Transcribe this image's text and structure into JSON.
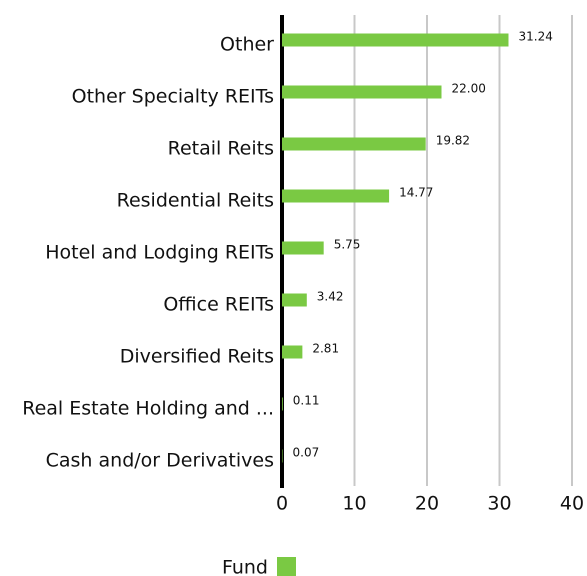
{
  "chart_data": {
    "type": "bar",
    "orientation": "horizontal",
    "categories": [
      "Other",
      "Other Specialty REITs",
      "Retail Reits",
      "Residential Reits",
      "Hotel and Lodging REITs",
      "Office REITs",
      "Diversified Reits",
      "Real Estate Holding and ...",
      "Cash and/or Derivatives"
    ],
    "series": [
      {
        "name": "Fund",
        "color": "#7ac943",
        "values": [
          31.24,
          22.0,
          19.82,
          14.77,
          5.75,
          3.42,
          2.81,
          0.11,
          0.07
        ],
        "value_labels": [
          "31.24",
          "22.00",
          "19.82",
          "14.77",
          "5.75",
          "3.42",
          "2.81",
          "0.11",
          "0.07"
        ]
      }
    ],
    "xlim": [
      0,
      40
    ],
    "xticks": [
      0,
      10,
      20,
      30,
      40
    ],
    "grid": true
  }
}
